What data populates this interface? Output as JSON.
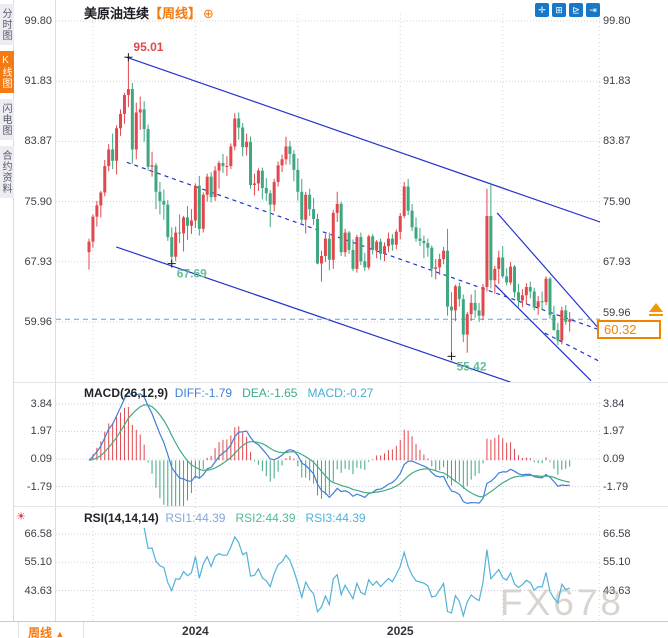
{
  "app": {
    "watermark": "FX678"
  },
  "sidebar": {
    "items": [
      {
        "label": "分时图",
        "selected": false
      },
      {
        "label": "K线图",
        "selected": true
      },
      {
        "label": "闪电图",
        "selected": false
      },
      {
        "label": "合约资料",
        "selected": false
      }
    ]
  },
  "header": {
    "title": "美原油连续",
    "timeframe_tag": "【周线】",
    "add_icon": "⊕"
  },
  "toolbar": {
    "icons": [
      {
        "name": "crosshair-icon",
        "glyph": "✛"
      },
      {
        "name": "axis-zoom-icon",
        "glyph": "⊞"
      },
      {
        "name": "axis-play-icon",
        "glyph": "⊵"
      },
      {
        "name": "exit-chart-icon",
        "glyph": "⇥"
      }
    ]
  },
  "price_axis": {
    "labels": [
      "99.80",
      "91.83",
      "83.87",
      "75.90",
      "67.93",
      "59.96"
    ]
  },
  "macd_panel": {
    "title": "MACD(26,12,9)",
    "diff_text": "DIFF:-1.79",
    "dea_text": "DEA:-1.65",
    "macd_text": "MACD:-0.27",
    "axis_labels": [
      "3.84",
      "1.97",
      "0.09",
      "-1.79"
    ]
  },
  "rsi_panel": {
    "title": "RSI(14,14,14)",
    "rsi1_text": "RSI1:44.39",
    "rsi2_text": "RSI2:44.39",
    "rsi3_text": "RSI3:44.39",
    "axis_labels": [
      "66.58",
      "55.10",
      "43.63"
    ],
    "sun_icon": "☀"
  },
  "bottom_bar": {
    "timeframe_label": "周线",
    "up_triangle": "▲",
    "year_ticks": [
      {
        "label": "2024",
        "week": 27
      },
      {
        "label": "2025",
        "week": 79
      }
    ]
  },
  "last_price": {
    "label": "60.32",
    "value": 60.32
  },
  "colors": {
    "up": "#e0484e",
    "down": "#3ea77f",
    "trend": "#2433cc",
    "grid": "#cfcfd8",
    "last_price_line": "#56a5ef",
    "accent_orange": "#f57a11",
    "diff_line": "#3f7fd6",
    "dea_line": "#44aa85",
    "rsi_line": "#52b2d8",
    "marker": "#1a1a1a",
    "ann_high": "#e2474b",
    "ann_low": "#63c096"
  },
  "chart_data": {
    "type": "candlestick",
    "symbol": "美原油连续",
    "interval": "周线",
    "title": "美原油连续【周线】",
    "ylim": [
      52.2,
      101.6
    ],
    "price_gridlines": [
      99.8,
      91.83,
      83.87,
      75.9,
      67.93,
      59.96
    ],
    "macd_gridlines": [
      3.84,
      1.97,
      0.09,
      -1.79
    ],
    "rsi_gridlines": [
      66.58,
      55.1,
      43.63
    ],
    "grid_weeks": [
      1,
      27,
      53,
      79,
      105,
      129.5
    ],
    "x_ticks": [
      {
        "label": "2024",
        "week": 27
      },
      {
        "label": "2025",
        "week": 79
      }
    ],
    "candles": [
      [
        69.2,
        71.0,
        66.9,
        70.6
      ],
      [
        70.6,
        74.2,
        69.8,
        73.9
      ],
      [
        73.9,
        76.0,
        72.6,
        75.4
      ],
      [
        75.4,
        77.3,
        73.8,
        77.1
      ],
      [
        77.1,
        81.4,
        76.6,
        80.6
      ],
      [
        80.6,
        83.5,
        79.9,
        82.8
      ],
      [
        82.8,
        84.9,
        80.2,
        81.3
      ],
      [
        81.3,
        86.0,
        79.5,
        85.6
      ],
      [
        85.6,
        88.1,
        84.6,
        87.5
      ],
      [
        87.5,
        90.3,
        86.2,
        90.0
      ],
      [
        90.0,
        95.01,
        88.4,
        90.8
      ],
      [
        90.8,
        91.6,
        80.9,
        82.8
      ],
      [
        82.8,
        89.0,
        81.5,
        87.7
      ],
      [
        87.7,
        89.8,
        85.4,
        88.1
      ],
      [
        88.1,
        89.2,
        83.8,
        85.5
      ],
      [
        85.5,
        86.1,
        80.0,
        80.5
      ],
      [
        80.5,
        82.5,
        79.2,
        80.7
      ],
      [
        80.7,
        81.0,
        74.9,
        77.2
      ],
      [
        77.2,
        78.5,
        74.2,
        76.0
      ],
      [
        76.0,
        77.5,
        73.5,
        75.5
      ],
      [
        75.5,
        76.1,
        70.7,
        71.2
      ],
      [
        71.2,
        72.5,
        67.69,
        68.6
      ],
      [
        68.6,
        72.6,
        68.0,
        71.8
      ],
      [
        71.8,
        74.2,
        70.4,
        71.7
      ],
      [
        71.7,
        74.0,
        69.3,
        73.8
      ],
      [
        73.8,
        75.3,
        70.8,
        72.7
      ],
      [
        72.7,
        74.9,
        71.6,
        73.4
      ],
      [
        73.4,
        78.3,
        72.4,
        78.0
      ],
      [
        78.0,
        79.3,
        71.4,
        72.3
      ],
      [
        72.3,
        77.1,
        71.8,
        76.8
      ],
      [
        76.8,
        79.6,
        75.9,
        79.2
      ],
      [
        79.2,
        79.8,
        75.8,
        76.5
      ],
      [
        76.5,
        80.6,
        76.0,
        80.0
      ],
      [
        80.0,
        81.3,
        77.6,
        81.0
      ],
      [
        81.0,
        82.2,
        79.7,
        80.6
      ],
      [
        80.6,
        81.9,
        79.3,
        80.6
      ],
      [
        80.6,
        83.6,
        80.2,
        83.2
      ],
      [
        83.2,
        87.6,
        82.7,
        86.9
      ],
      [
        86.9,
        87.7,
        84.1,
        85.7
      ],
      [
        85.7,
        86.3,
        81.9,
        83.1
      ],
      [
        83.1,
        84.9,
        82.0,
        83.8
      ],
      [
        83.8,
        84.5,
        77.6,
        78.1
      ],
      [
        78.1,
        79.6,
        76.7,
        78.3
      ],
      [
        78.3,
        80.3,
        77.3,
        80.0
      ],
      [
        80.0,
        80.4,
        76.2,
        77.7
      ],
      [
        77.7,
        79.0,
        76.0,
        77.0
      ],
      [
        77.0,
        77.4,
        72.5,
        75.5
      ],
      [
        75.5,
        78.9,
        74.6,
        78.5
      ],
      [
        78.5,
        81.2,
        77.9,
        80.7
      ],
      [
        80.7,
        82.1,
        79.8,
        81.5
      ],
      [
        81.5,
        84.5,
        80.8,
        83.2
      ],
      [
        83.2,
        83.9,
        80.8,
        82.2
      ],
      [
        82.2,
        82.7,
        78.6,
        80.1
      ],
      [
        80.1,
        81.6,
        76.0,
        77.2
      ],
      [
        77.2,
        78.9,
        72.9,
        73.5
      ],
      [
        73.5,
        77.2,
        71.7,
        76.8
      ],
      [
        76.8,
        77.6,
        74.0,
        74.9
      ],
      [
        74.9,
        76.4,
        72.8,
        73.6
      ],
      [
        73.6,
        74.3,
        67.6,
        67.7
      ],
      [
        67.7,
        69.4,
        65.3,
        68.7
      ],
      [
        68.7,
        71.6,
        67.9,
        71.0
      ],
      [
        71.0,
        71.8,
        66.8,
        68.2
      ],
      [
        68.2,
        74.8,
        67.0,
        74.4
      ],
      [
        74.4,
        77.2,
        73.2,
        75.6
      ],
      [
        75.6,
        75.9,
        68.7,
        69.2
      ],
      [
        69.2,
        72.3,
        68.6,
        71.8
      ],
      [
        71.8,
        72.0,
        69.0,
        69.5
      ],
      [
        69.5,
        70.9,
        66.7,
        67.0
      ],
      [
        67.0,
        71.5,
        66.5,
        71.2
      ],
      [
        71.2,
        71.8,
        67.5,
        68.0
      ],
      [
        68.0,
        69.1,
        66.7,
        67.2
      ],
      [
        67.2,
        71.5,
        66.9,
        71.3
      ],
      [
        71.3,
        71.6,
        68.9,
        69.5
      ],
      [
        69.5,
        70.8,
        68.4,
        70.6
      ],
      [
        70.6,
        71.0,
        68.2,
        69.0
      ],
      [
        69.0,
        70.5,
        68.0,
        70.0
      ],
      [
        70.0,
        71.8,
        69.2,
        71.0
      ],
      [
        71.0,
        71.6,
        69.4,
        70.2
      ],
      [
        70.2,
        72.2,
        69.6,
        71.9
      ],
      [
        71.9,
        74.4,
        70.9,
        74.0
      ],
      [
        74.0,
        78.5,
        73.7,
        77.9
      ],
      [
        77.9,
        78.9,
        74.1,
        74.7
      ],
      [
        74.7,
        75.6,
        72.0,
        72.5
      ],
      [
        72.5,
        73.8,
        70.6,
        71.0
      ],
      [
        71.0,
        72.4,
        70.0,
        70.7
      ],
      [
        70.7,
        71.4,
        68.4,
        70.4
      ],
      [
        70.4,
        71.0,
        68.6,
        69.8
      ],
      [
        69.8,
        70.1,
        65.9,
        67.0
      ],
      [
        67.0,
        68.3,
        65.6,
        67.2
      ],
      [
        67.2,
        69.0,
        66.2,
        68.3
      ],
      [
        68.3,
        69.9,
        67.6,
        69.4
      ],
      [
        69.4,
        72.3,
        60.8,
        62.0
      ],
      [
        62.0,
        63.9,
        55.42,
        61.5
      ],
      [
        61.5,
        64.9,
        60.1,
        64.7
      ],
      [
        64.7,
        65.2,
        62.0,
        63.0
      ],
      [
        63.0,
        63.6,
        57.3,
        58.3
      ],
      [
        58.3,
        61.3,
        55.9,
        61.0
      ],
      [
        61.0,
        63.6,
        60.1,
        62.5
      ],
      [
        62.5,
        64.2,
        60.5,
        61.5
      ],
      [
        61.5,
        62.5,
        60.0,
        60.8
      ],
      [
        60.8,
        65.0,
        60.2,
        64.6
      ],
      [
        64.6,
        77.6,
        64.0,
        74.0
      ],
      [
        74.0,
        78.4,
        64.4,
        65.5
      ],
      [
        65.5,
        67.4,
        63.7,
        67.0
      ],
      [
        67.0,
        69.4,
        65.0,
        68.5
      ],
      [
        68.5,
        70.0,
        65.8,
        66.0
      ],
      [
        66.0,
        67.1,
        64.8,
        65.2
      ],
      [
        65.2,
        67.9,
        64.9,
        67.3
      ],
      [
        67.3,
        67.5,
        63.2,
        63.9
      ],
      [
        63.9,
        65.0,
        61.8,
        62.8
      ],
      [
        62.8,
        64.3,
        61.9,
        63.5
      ],
      [
        63.5,
        65.1,
        62.3,
        64.6
      ],
      [
        64.6,
        65.3,
        63.1,
        64.0
      ],
      [
        64.0,
        64.5,
        61.5,
        61.9
      ],
      [
        61.9,
        63.4,
        60.9,
        62.7
      ],
      [
        62.7,
        64.0,
        61.6,
        62.6
      ],
      [
        62.6,
        66.0,
        62.2,
        65.7
      ],
      [
        65.7,
        65.9,
        60.4,
        60.9
      ],
      [
        60.9,
        62.1,
        58.8,
        58.9
      ],
      [
        58.9,
        59.8,
        56.9,
        57.5
      ],
      [
        57.5,
        62.0,
        57.0,
        61.5
      ],
      [
        61.5,
        62.2,
        59.6,
        60.0
      ],
      [
        60.0,
        61.3,
        58.7,
        60.32
      ]
    ],
    "trendlines": [
      {
        "points": [
          [
            9.6,
            95.0
          ],
          [
            129.7,
            73.2
          ]
        ],
        "dashed": false
      },
      {
        "points": [
          [
            6.9,
            69.9
          ],
          [
            107.0,
            52.0
          ]
        ],
        "dashed": false
      },
      {
        "points": [
          [
            9.6,
            81.1
          ],
          [
            129.7,
            58.9
          ]
        ],
        "dashed": true
      },
      {
        "points": [
          [
            103.6,
            74.4
          ],
          [
            129.7,
            58.9
          ]
        ],
        "dashed": false
      },
      {
        "points": [
          [
            103.0,
            64.9
          ],
          [
            127.4,
            52.2
          ]
        ],
        "dashed": false
      },
      {
        "points": [
          [
            115.7,
            58.5
          ],
          [
            130.5,
            54.5
          ]
        ],
        "dashed": true
      }
    ],
    "annotations": [
      {
        "week": 10,
        "price": 95.01,
        "label": "95.01",
        "side": "above",
        "kind": "high"
      },
      {
        "week": 21,
        "price": 67.69,
        "label": "67.69",
        "side": "below",
        "kind": "low"
      },
      {
        "week": 92,
        "price": 55.42,
        "label": "55.42",
        "side": "below",
        "kind": "low"
      }
    ],
    "last_price_line": {
      "price": 60.32,
      "label": "60.32"
    },
    "indicators": {
      "macd": {
        "params": [
          26,
          12,
          9
        ],
        "diff": -1.79,
        "dea": -1.65,
        "macd": -0.27
      },
      "rsi": {
        "params": [
          14,
          14,
          14
        ],
        "rsi1": 44.39,
        "rsi2": 44.39,
        "rsi3": 44.39
      }
    }
  }
}
